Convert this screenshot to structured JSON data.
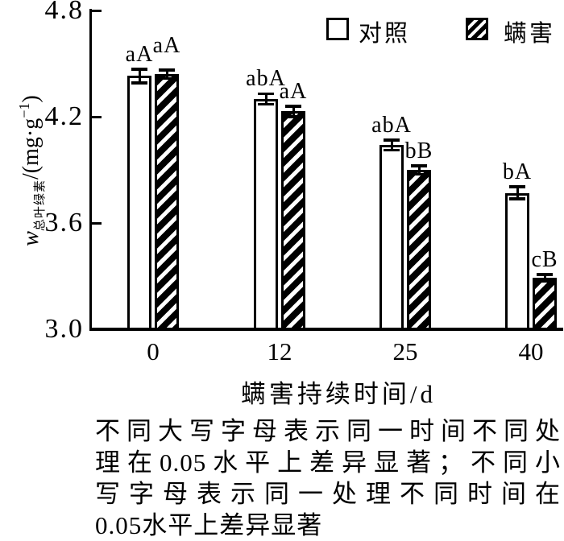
{
  "figure": {
    "y_axis": {
      "variable": "w",
      "subscript": "总叶绿素",
      "unit_prefix": "/(mg·g",
      "unit_sup": "−1",
      "unit_suffix": ")",
      "tick_labels": [
        "4.8",
        "4.2",
        "3.6",
        "3.0"
      ]
    },
    "x_axis": {
      "title": "螨害持续时间/d",
      "tick_labels": [
        "0",
        "12",
        "25",
        "40"
      ]
    },
    "legend": {
      "control_label": "对照",
      "mite_label": "螨害"
    }
  },
  "chart_data": {
    "type": "bar",
    "title": "",
    "categories": [
      0,
      12,
      25,
      40
    ],
    "series": [
      {
        "key": "control",
        "name": "对照",
        "pattern": "open",
        "values": [
          4.43,
          4.3,
          4.04,
          3.77
        ],
        "errors": [
          0.04,
          0.03,
          0.03,
          0.035
        ],
        "sig_labels": [
          "aA",
          "abA",
          "abA",
          "bA"
        ]
      },
      {
        "key": "mite",
        "name": "螨害",
        "pattern": "hatched",
        "values": [
          4.44,
          4.23,
          3.9,
          3.29
        ],
        "errors": [
          0.025,
          0.03,
          0.025,
          0.02
        ],
        "sig_labels": [
          "aA",
          "aA",
          "bB",
          "cB"
        ],
        "label_dy": [
          -12,
          0,
          0,
          0
        ]
      }
    ],
    "xlabel": "螨害持续时间/d",
    "ylabel": "w总叶绿素/(mg·g⁻¹)",
    "ylim": [
      3.0,
      4.8
    ],
    "yticks": [
      4.8,
      4.2,
      3.6,
      3.0
    ],
    "grid": false,
    "legend_position": "top-right",
    "error_bars": true
  },
  "caption": {
    "lines": [
      "不同大写字母表示同一时间不同处",
      "理在0.05水平上差异显著；不同小",
      "写字母表示同一处理不同时间在",
      "0.05水平上差异显著"
    ]
  },
  "colors": {
    "ink": "#000000",
    "background": "#ffffff"
  }
}
